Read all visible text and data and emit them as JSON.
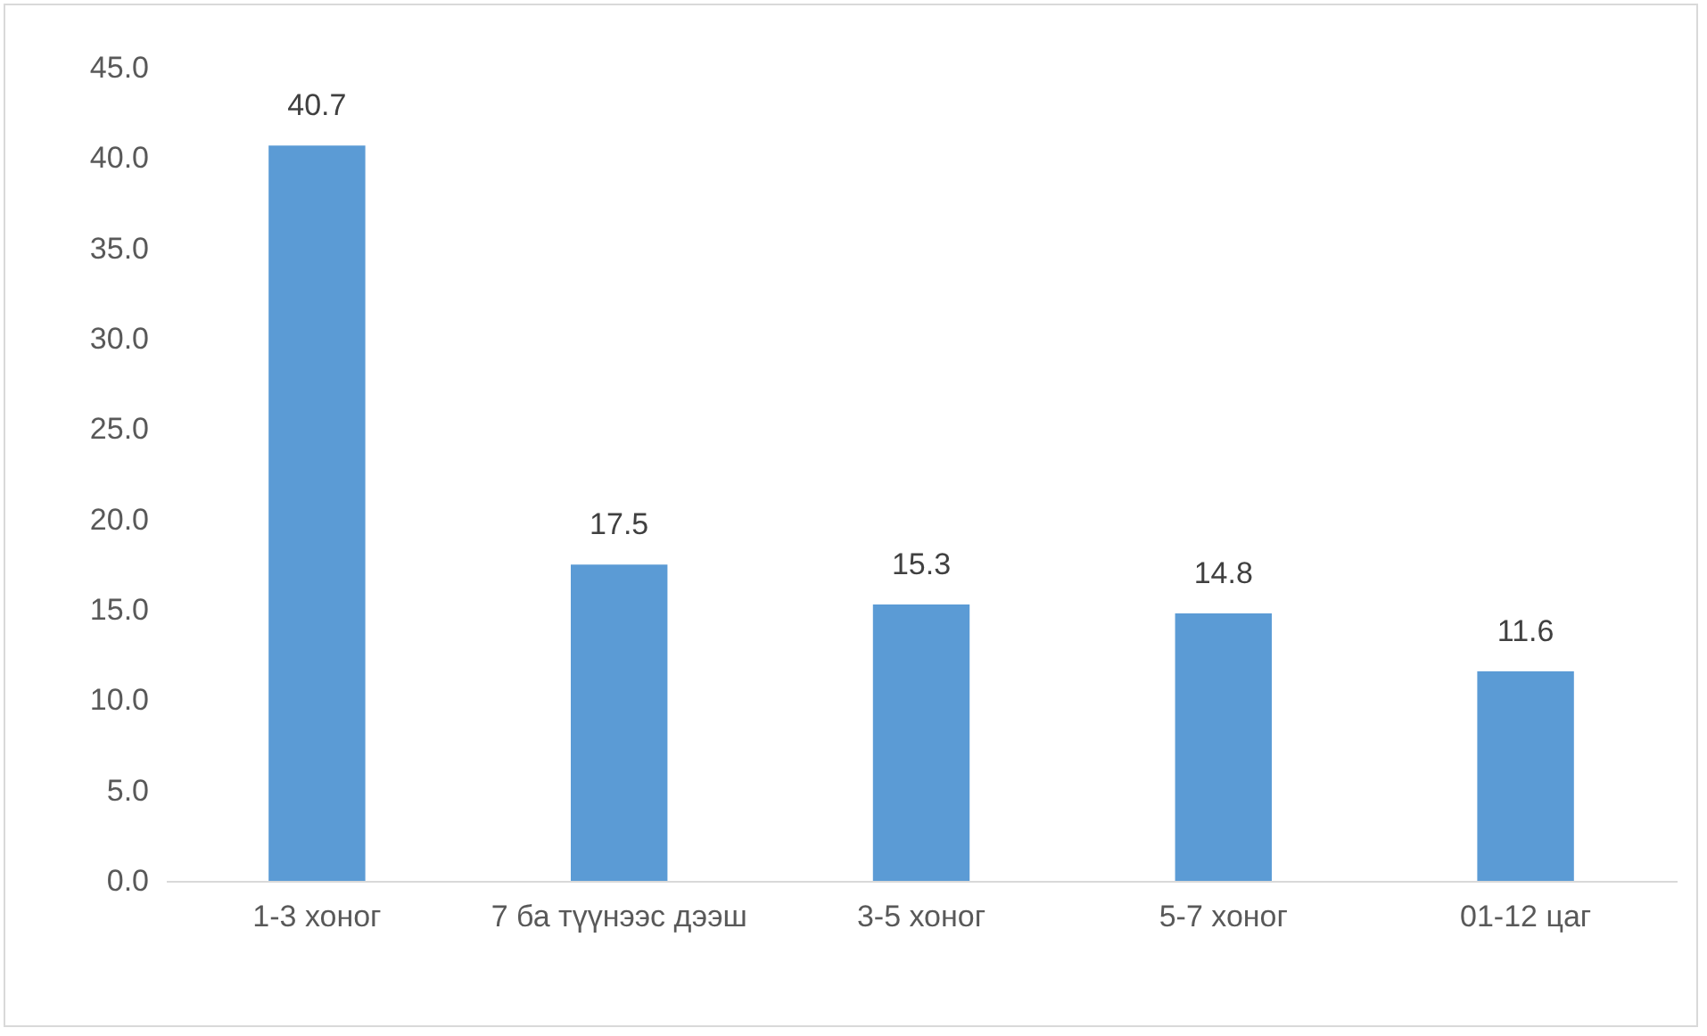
{
  "chart_data": {
    "type": "bar",
    "categories": [
      "1-3 хоног",
      "7 ба түүнээс дээш",
      "3-5 хоног",
      "5-7 хоног",
      "01-12 цаг"
    ],
    "values": [
      40.7,
      17.5,
      15.3,
      14.8,
      11.6
    ],
    "color": "#5b9bd5",
    "data_labels": true,
    "grid": false,
    "ylim": [
      0,
      45
    ],
    "yticks": [
      {
        "value": 0,
        "label": "0.0"
      },
      {
        "value": 5,
        "label": "5.0"
      },
      {
        "value": 10,
        "label": "10.0"
      },
      {
        "value": 15,
        "label": "15.0"
      },
      {
        "value": 20,
        "label": "20.0"
      },
      {
        "value": 25,
        "label": "25.0"
      },
      {
        "value": 30,
        "label": "30.0"
      },
      {
        "value": 35,
        "label": "35.0"
      },
      {
        "value": 40,
        "label": "40.0"
      },
      {
        "value": 45,
        "label": "45.0"
      }
    ]
  }
}
